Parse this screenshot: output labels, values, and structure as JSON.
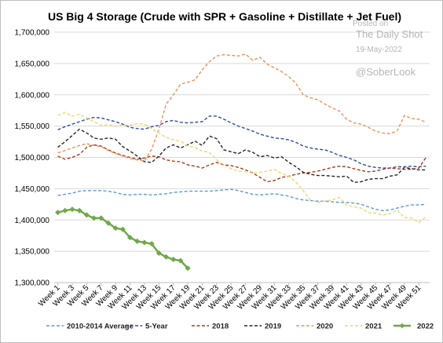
{
  "watermark": {
    "label": "Posted on",
    "source": "The Daily Shot",
    "date": "19-May-2022",
    "handle": "@SoberLook"
  },
  "chart_data": {
    "type": "line",
    "title": "US Big 4 Storage (Crude with SPR + Gasoline + Distillate + Jet Fuel)",
    "xlabel": "",
    "ylabel": "",
    "ylim": [
      1300000,
      1700000
    ],
    "y_ticks": [
      1300000,
      1350000,
      1400000,
      1450000,
      1500000,
      1550000,
      1600000,
      1650000,
      1700000
    ],
    "y_tick_labels": [
      "1,300,000",
      "1,350,000",
      "1,400,000",
      "1,450,000",
      "1,500,000",
      "1,550,000",
      "1,600,000",
      "1,650,000",
      "1,700,000"
    ],
    "x_tick_labels": [
      "Week 1",
      "Week 3",
      "Week 5",
      "Week 7",
      "Week 9",
      "Week 11",
      "Week 13",
      "Week 15",
      "Week 17",
      "Week 19",
      "Week 21",
      "Week 23",
      "Week 25",
      "Week 27",
      "Week 29",
      "Week 31",
      "Week 33",
      "Week 35",
      "Week 37",
      "Week 39",
      "Week 41",
      "Week 43",
      "Week 45",
      "Week 47",
      "Week 49",
      "Week 51"
    ],
    "weeks": 52,
    "grid": true,
    "legend_position": "bottom",
    "series": [
      {
        "name": "2010-2014 Average",
        "color": "#5b9bd5",
        "style": "dashed",
        "values": [
          1439000,
          1441000,
          1443000,
          1446000,
          1447000,
          1447000,
          1447000,
          1446000,
          1444000,
          1441000,
          1440000,
          1441000,
          1441000,
          1440000,
          1441000,
          1442000,
          1444000,
          1445000,
          1446000,
          1446000,
          1446000,
          1446000,
          1447000,
          1448000,
          1449000,
          1447000,
          1444000,
          1441000,
          1440000,
          1441000,
          1442000,
          1440000,
          1438000,
          1434000,
          1432000,
          1431000,
          1430000,
          1430000,
          1429000,
          1428000,
          1428000,
          1427000,
          1425000,
          1421000,
          1417000,
          1415000,
          1416000,
          1419000,
          1422000,
          1424000,
          1424000,
          1425000
        ]
      },
      {
        "name": "5-Year",
        "color": "#2e4e9e",
        "style": "dashed",
        "values": [
          1544000,
          1549000,
          1553000,
          1557000,
          1561000,
          1564000,
          1563000,
          1560000,
          1557000,
          1553000,
          1548000,
          1546000,
          1545000,
          1549000,
          1551000,
          1557000,
          1559000,
          1556000,
          1555000,
          1556000,
          1557000,
          1566000,
          1566000,
          1561000,
          1555000,
          1550000,
          1546000,
          1542000,
          1537000,
          1534000,
          1531000,
          1530000,
          1528000,
          1524000,
          1518000,
          1515000,
          1513000,
          1512000,
          1508000,
          1503000,
          1500000,
          1496000,
          1490000,
          1486000,
          1484000,
          1483000,
          1483000,
          1485000,
          1485000,
          1486000,
          1485000,
          1486000
        ]
      },
      {
        "name": "2018",
        "color": "#a83c1f",
        "style": "dashed",
        "values": [
          1502000,
          1497000,
          1500000,
          1505000,
          1516000,
          1520000,
          1518000,
          1512000,
          1507000,
          1503000,
          1500000,
          1497000,
          1499000,
          1502000,
          1501000,
          1496000,
          1494000,
          1493000,
          1488000,
          1486000,
          1483000,
          1488000,
          1492000,
          1488000,
          1487000,
          1484000,
          1480000,
          1475000,
          1468000,
          1461000,
          1463000,
          1468000,
          1470000,
          1473000,
          1475000,
          1476000,
          1478000,
          1481000,
          1484000,
          1486000,
          1485000,
          1482000,
          1479000,
          1477000,
          1478000,
          1481000,
          1483000,
          1482000,
          1481000,
          1481000,
          1483000,
          1500000
        ]
      },
      {
        "name": "2019",
        "color": "#262626",
        "style": "dashed",
        "values": [
          1516000,
          1525000,
          1535000,
          1545000,
          1539000,
          1531000,
          1529000,
          1531000,
          1529000,
          1517000,
          1510000,
          1502000,
          1493000,
          1492000,
          1502000,
          1515000,
          1520000,
          1515000,
          1520000,
          1526000,
          1519000,
          1534000,
          1530000,
          1512000,
          1509000,
          1506000,
          1512000,
          1508000,
          1501000,
          1503000,
          1499000,
          1501000,
          1492000,
          1485000,
          1476000,
          1473000,
          1471000,
          1471000,
          1470000,
          1469000,
          1470000,
          1460000,
          1461000,
          1465000,
          1466000,
          1466000,
          1470000,
          1472000,
          1484000,
          1482000,
          1480000,
          1480000
        ]
      },
      {
        "name": "2020",
        "color": "#e8935a",
        "style": "dashed",
        "values": [
          1507000,
          1511000,
          1515000,
          1519000,
          1522000,
          1519000,
          1517000,
          1511000,
          1506000,
          1502000,
          1498000,
          1496000,
          1494000,
          1513000,
          1545000,
          1585000,
          1600000,
          1617000,
          1620000,
          1624000,
          1640000,
          1653000,
          1662000,
          1664000,
          1663000,
          1662000,
          1665000,
          1655000,
          1660000,
          1649000,
          1643000,
          1637000,
          1629000,
          1618000,
          1600000,
          1595000,
          1592000,
          1585000,
          1579000,
          1574000,
          1561000,
          1555000,
          1553000,
          1548000,
          1542000,
          1539000,
          1538000,
          1542000,
          1567000,
          1562000,
          1561000,
          1556000
        ]
      },
      {
        "name": "2021",
        "color": "#f2d474",
        "style": "dashed",
        "values": [
          1567000,
          1572000,
          1566000,
          1569000,
          1563000,
          1557000,
          1551000,
          1552000,
          1550000,
          1552000,
          1551000,
          1554000,
          1553000,
          1546000,
          1539000,
          1532000,
          1528000,
          1526000,
          1518000,
          1516000,
          1510000,
          1508000,
          1496000,
          1488000,
          1482000,
          1478000,
          1477000,
          1475000,
          1476000,
          1478000,
          1481000,
          1474000,
          1470000,
          1460000,
          1447000,
          1432000,
          1428000,
          1430000,
          1432000,
          1436000,
          1424000,
          1421000,
          1419000,
          1412000,
          1411000,
          1408000,
          1410000,
          1416000,
          1404000,
          1403000,
          1396000,
          1405000
        ]
      },
      {
        "name": "2022",
        "color": "#70a84a",
        "style": "solid",
        "values": [
          1412000,
          1415000,
          1417000,
          1415000,
          1408000,
          1403000,
          1403000,
          1395000,
          1387000,
          1385000,
          1372000,
          1366000,
          1364000,
          1362000,
          1347000,
          1341000,
          1337000,
          1335000,
          1323000
        ]
      }
    ]
  }
}
